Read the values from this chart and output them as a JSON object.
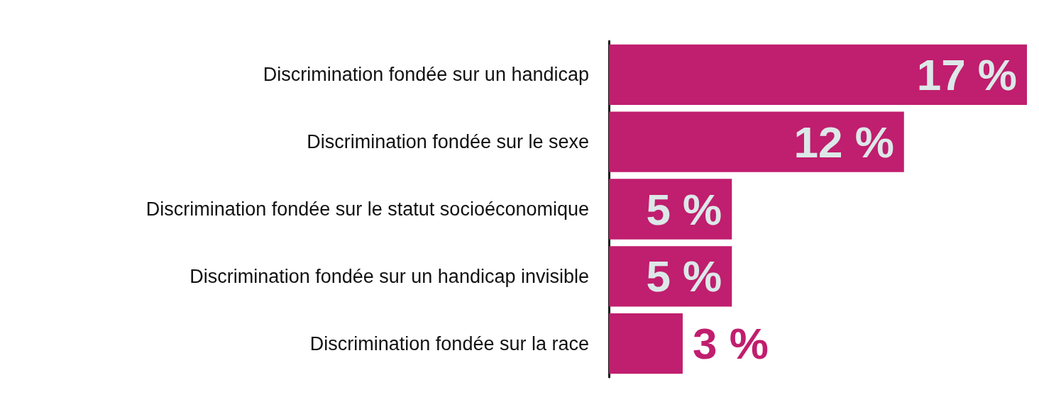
{
  "chart_data": {
    "type": "bar",
    "orientation": "horizontal",
    "categories": [
      "Discrimination fondée sur un handicap",
      "Discrimination fondée sur le sexe",
      "Discrimination fondée sur le statut socioéconomique",
      "Discrimination fondée sur un handicap invisible",
      "Discrimination fondée sur la race"
    ],
    "values": [
      17,
      12,
      5,
      5,
      3
    ],
    "value_labels": [
      "17 %",
      "12 %",
      "5 %",
      "5 %",
      "3 %"
    ],
    "color": "#c01e6e"
  }
}
